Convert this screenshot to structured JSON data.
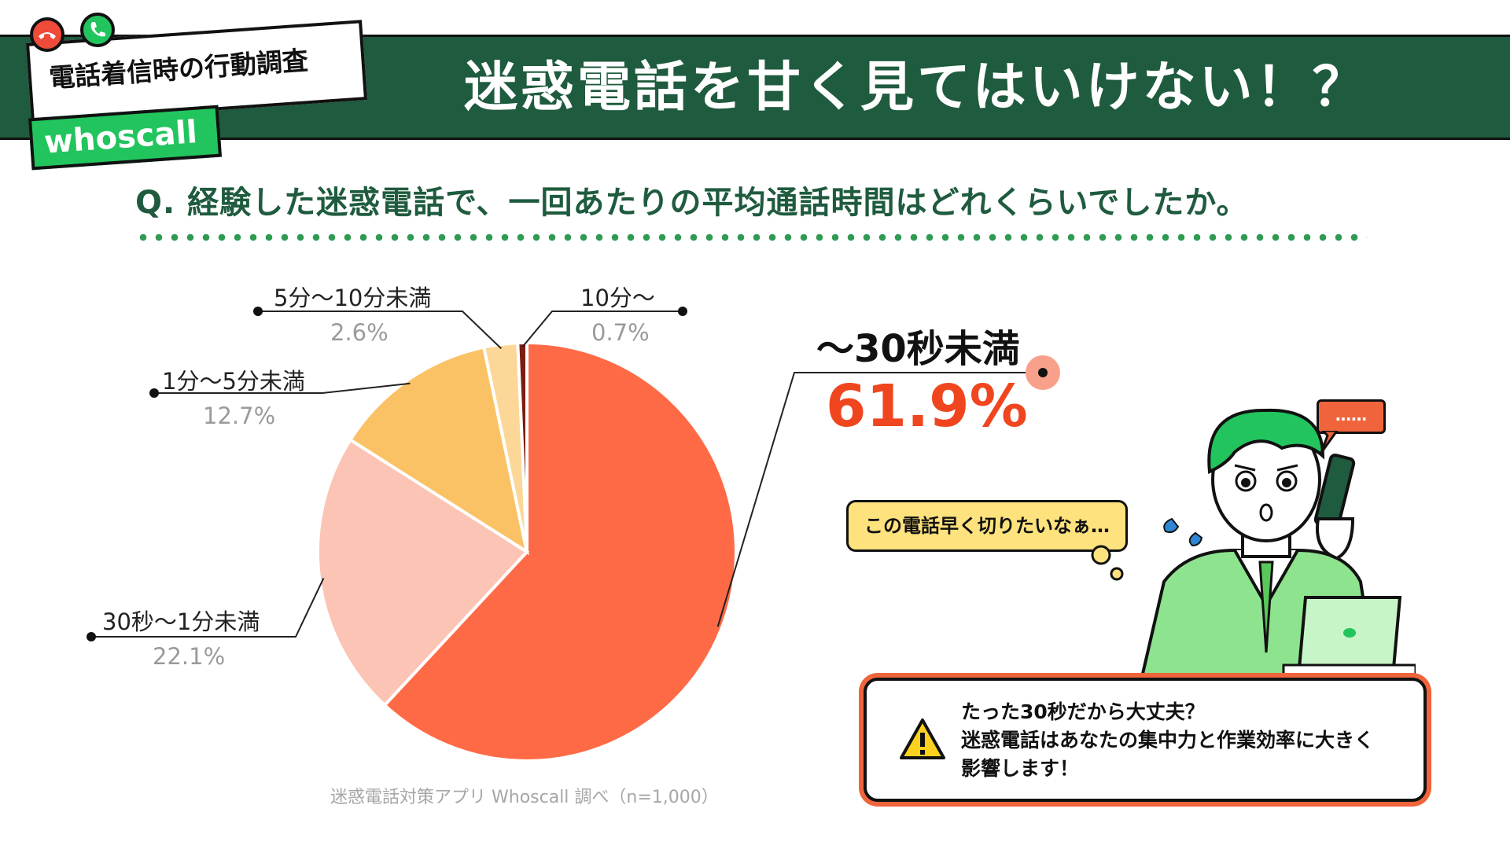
{
  "header": {
    "survey_label": "電話着信時の行動調査",
    "brand": "whoscall",
    "title": "迷惑電話を甘く見てはいけない！？"
  },
  "question": "Q. 経験した迷惑電話で、一回あたりの平均通話時間はどれくらいでしたか。",
  "chart_data": {
    "type": "pie",
    "categories": [
      "〜30秒未満",
      "30秒〜1分未満",
      "1分〜5分未満",
      "5分〜10分未満",
      "10分〜"
    ],
    "values": [
      61.9,
      22.1,
      12.7,
      2.6,
      0.7
    ],
    "value_labels": [
      "61.9%",
      "22.1%",
      "12.7%",
      "2.6%",
      "0.7%"
    ],
    "colors": [
      "#ff6a46",
      "#fcc4b4",
      "#fbc265",
      "#fcd797",
      "#7a1e14"
    ],
    "title": "",
    "source": "迷惑電話対策アプリ Whoscall 調べ（n=1,000）"
  },
  "illustration": {
    "bubble_text": "この電話早く切りたいなぁ…",
    "small_bubble_text": "……"
  },
  "note": {
    "lines": [
      "たった30秒だから大丈夫？",
      "迷惑電話はあなたの集中力と作業効率に大きく",
      "影響します！"
    ]
  },
  "colors": {
    "header_green": "#1f5b3e",
    "brand_green": "#22c45e",
    "accent_red": "#f0461f",
    "warning_orange": "#f0643c",
    "warning_yellow": "#fcd21e"
  }
}
